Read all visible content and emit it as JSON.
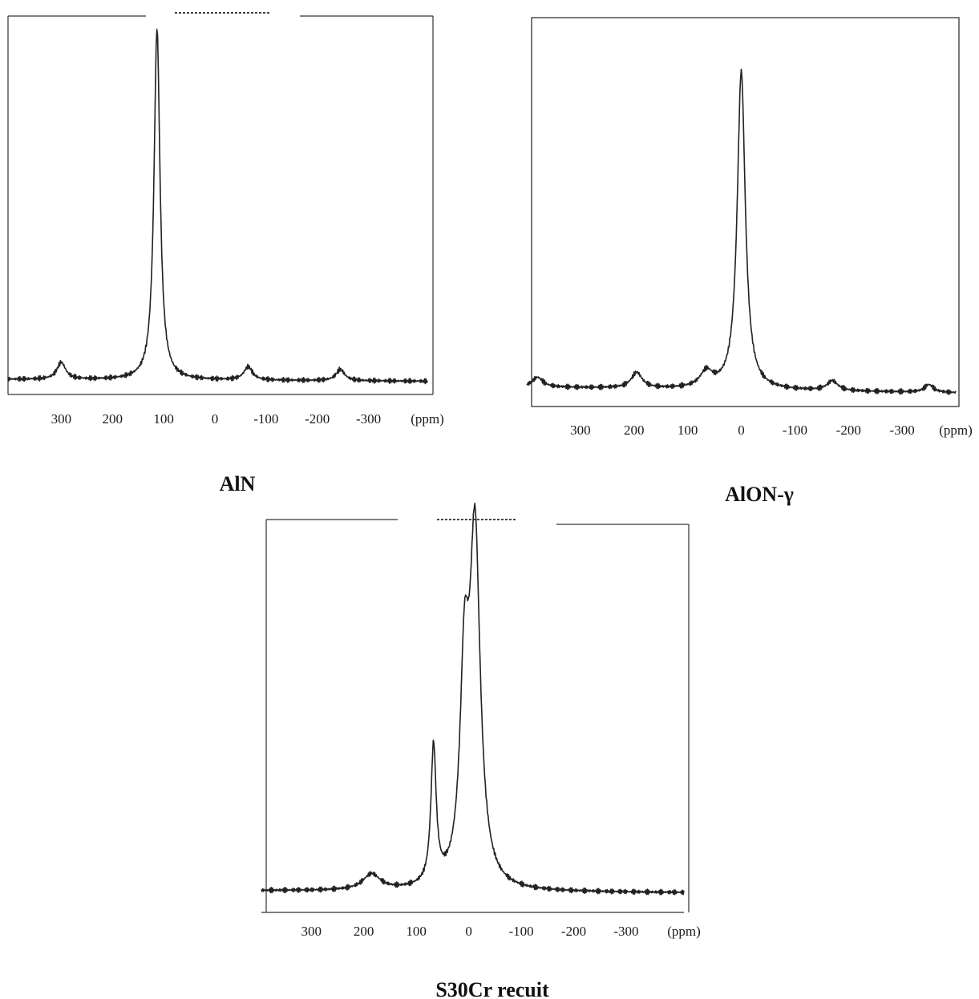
{
  "chart_data": [
    {
      "type": "line",
      "title": "AlN",
      "xlabel": "(ppm)",
      "xticks": [
        "300",
        "200",
        "100",
        "0",
        "-100",
        "-200",
        "-300"
      ],
      "xtick_values": [
        300,
        200,
        100,
        0,
        -100,
        -200,
        -300
      ],
      "xlim": [
        404,
        -415
      ],
      "x_reversed": true,
      "ylim": [
        0,
        1
      ],
      "baseline": [
        0.04,
        0.035
      ],
      "peaks": [
        {
          "center": 113,
          "height": 0.93,
          "width": 7
        },
        {
          "center": 300,
          "height": 0.045,
          "width": 10
        },
        {
          "center": -65,
          "height": 0.035,
          "width": 10
        },
        {
          "center": -245,
          "height": 0.03,
          "width": 10
        }
      ],
      "series": []
    },
    {
      "type": "line",
      "title": "AlON-γ",
      "xlabel": "(ppm)",
      "xticks": [
        "300",
        "200",
        "100",
        "0",
        "-100",
        "-200",
        "-300"
      ],
      "xtick_values": [
        300,
        200,
        100,
        0,
        -100,
        -200,
        -300
      ],
      "xlim": [
        400,
        -400
      ],
      "x_reversed": true,
      "ylim": [
        0,
        1
      ],
      "baseline": [
        0.05,
        0.035
      ],
      "peaks": [
        {
          "center": 0,
          "height": 0.82,
          "width": 9
        },
        {
          "center": 380,
          "height": 0.025,
          "width": 12
        },
        {
          "center": 195,
          "height": 0.04,
          "width": 12
        },
        {
          "center": 65,
          "height": 0.04,
          "width": 14
        },
        {
          "center": -170,
          "height": 0.025,
          "width": 12
        },
        {
          "center": -350,
          "height": 0.02,
          "width": 10
        }
      ],
      "series": []
    },
    {
      "type": "line",
      "title": "S30Cr recuit",
      "xlabel": "(ppm)",
      "xticks": [
        "300",
        "200",
        "100",
        "0",
        "-100",
        "-200",
        "-300"
      ],
      "xtick_values": [
        300,
        200,
        100,
        0,
        -100,
        -200,
        -300
      ],
      "xlim": [
        395,
        -410
      ],
      "x_reversed": true,
      "ylim": [
        0,
        1
      ],
      "baseline": [
        0.055,
        0.05
      ],
      "peaks": [
        {
          "center": -12,
          "height": 0.88,
          "width": 12
        },
        {
          "center": 8,
          "height": 0.5,
          "width": 10
        },
        {
          "center": 67,
          "height": 0.35,
          "width": 6
        },
        {
          "center": 185,
          "height": 0.04,
          "width": 20
        }
      ],
      "series": []
    }
  ]
}
